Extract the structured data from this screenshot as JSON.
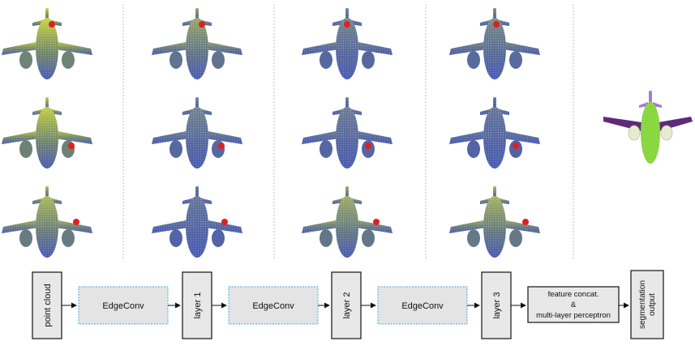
{
  "figure": {
    "columns": [
      {
        "name": "input-point-cloud"
      },
      {
        "name": "layer-1"
      },
      {
        "name": "layer-2"
      },
      {
        "name": "layer-3"
      }
    ],
    "rows": 3,
    "heat_colors": {
      "low": "#4a5bb5",
      "mid": "#8fa63c",
      "high": "#d8e330",
      "query_point": "#e02020"
    },
    "segmentation_colors": {
      "body": "#86d63a",
      "wings": "#5e2a7a",
      "tail": "#a87ad0",
      "engines": "#e6ecd0"
    }
  },
  "pipeline": {
    "blocks": [
      {
        "id": "point-cloud",
        "label": "point cloud",
        "vertical": true
      },
      {
        "id": "edgeconv-1",
        "label": "EdgeConv",
        "vertical": false
      },
      {
        "id": "layer-1",
        "label": "layer 1",
        "vertical": true
      },
      {
        "id": "edgeconv-2",
        "label": "EdgeConv",
        "vertical": false
      },
      {
        "id": "layer-2",
        "label": "layer 2",
        "vertical": true
      },
      {
        "id": "edgeconv-3",
        "label": "EdgeConv",
        "vertical": false
      },
      {
        "id": "layer-3",
        "label": "layer 3",
        "vertical": true
      },
      {
        "id": "feature-concat",
        "label_lines": [
          "feature concat.",
          "&",
          "multi-layer perceptron"
        ],
        "vertical": false
      },
      {
        "id": "segmentation-output",
        "label_lines": [
          "segmentation",
          "output"
        ],
        "vertical": true
      }
    ]
  }
}
